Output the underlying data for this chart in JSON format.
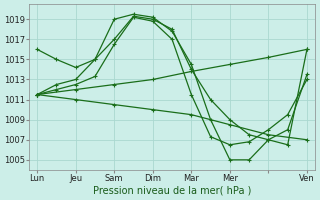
{
  "background_color": "#cceee8",
  "grid_color": "#aad8d0",
  "line_color": "#1a6e1a",
  "xlabel": "Pression niveau de la mer( hPa )",
  "ylim": [
    1004,
    1020.5
  ],
  "yticks": [
    1005,
    1007,
    1009,
    1011,
    1013,
    1015,
    1017,
    1019
  ],
  "x_labels": [
    "Lun",
    "Jeu",
    "Sam",
    "Dim",
    "Mar",
    "Mer",
    "",
    "Ven"
  ],
  "x_positions": [
    0,
    1,
    2,
    3,
    4,
    5,
    6,
    7
  ],
  "xlim": [
    -0.2,
    7.2
  ],
  "series": [
    {
      "x": [
        0,
        0.5,
        1,
        1.5,
        2,
        2.5,
        3,
        3.5,
        4,
        4.5,
        5,
        5.5,
        6,
        6.5,
        7
      ],
      "y": [
        1016,
        1015,
        1014.2,
        1015,
        1017,
        1019.3,
        1019,
        1018,
        1014,
        1011,
        1009,
        1007.5,
        1007,
        1006.5,
        1016
      ]
    },
    {
      "x": [
        0,
        1,
        2,
        3,
        4,
        5,
        6,
        7
      ],
      "y": [
        1011.5,
        1012.0,
        1012.5,
        1013.0,
        1013.8,
        1014.5,
        1015.2,
        1016.0
      ]
    },
    {
      "x": [
        0,
        1,
        2,
        3,
        4,
        5,
        6,
        7
      ],
      "y": [
        1011.5,
        1011.0,
        1010.5,
        1010.0,
        1009.5,
        1008.5,
        1007.5,
        1007.0
      ]
    },
    {
      "x": [
        0,
        0.5,
        1,
        1.5,
        2,
        2.5,
        3,
        3.5,
        4,
        4.5,
        5,
        5.5,
        6,
        6.5,
        7
      ],
      "y": [
        1011.5,
        1012.5,
        1013.0,
        1015.0,
        1019.0,
        1019.5,
        1019.2,
        1017.8,
        1014.5,
        1009.0,
        1005.0,
        1005.0,
        1007.0,
        1008.0,
        1013.5
      ]
    },
    {
      "x": [
        0,
        0.5,
        1,
        1.5,
        2,
        2.5,
        3,
        3.5,
        4,
        4.5,
        5,
        5.5,
        6,
        6.5,
        7
      ],
      "y": [
        1011.5,
        1012.0,
        1012.5,
        1013.3,
        1016.5,
        1019.2,
        1018.8,
        1017.0,
        1011.5,
        1007.3,
        1006.5,
        1006.8,
        1008.0,
        1009.5,
        1013.0
      ]
    }
  ]
}
